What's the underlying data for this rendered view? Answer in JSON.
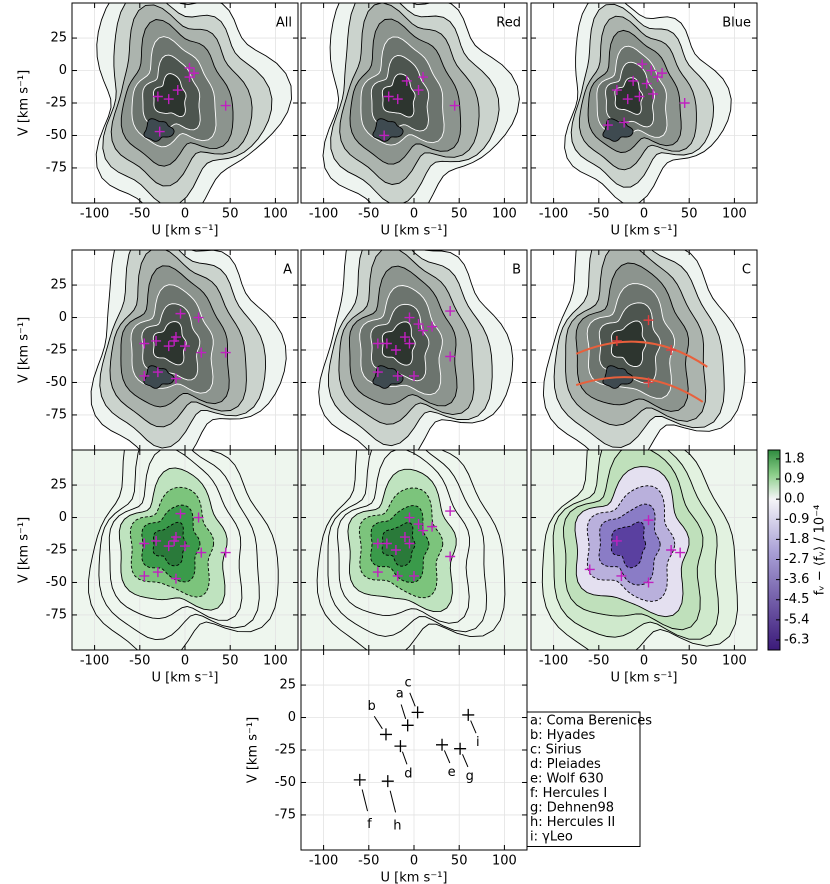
{
  "chart_data": [
    {
      "type": "contour",
      "title": "All",
      "title_color": "#000000",
      "ylabel": "V [km s⁻¹]",
      "xlabel": "U [km s⁻¹]",
      "xlim": [
        -125,
        125
      ],
      "ylim": [
        -102,
        52
      ],
      "xticks": [
        -100,
        -50,
        0,
        50,
        100
      ],
      "yticks": [
        -75,
        -50,
        -25,
        0,
        25
      ],
      "show_xticklabels": true,
      "show_yticklabels": true,
      "grid": true,
      "marker_color": "#c020c0",
      "markers": {
        "x": [
          -30,
          -18,
          -8,
          5,
          5,
          10,
          45,
          -28
        ],
        "y": [
          -20,
          -22,
          -15,
          -5,
          2,
          -2,
          -27,
          -47
        ]
      }
    },
    {
      "type": "contour",
      "title": "Red",
      "title_color": "#d62728",
      "xlabel": "U [km s⁻¹]",
      "xlim": [
        -125,
        125
      ],
      "ylim": [
        -102,
        52
      ],
      "xticks": [
        -100,
        -50,
        0,
        50,
        100
      ],
      "yticks": [
        -75,
        -50,
        -25,
        0,
        25
      ],
      "show_xticklabels": true,
      "show_yticklabels": false,
      "grid": true,
      "marker_color": "#c020c0",
      "markers": {
        "x": [
          -28,
          -18,
          -8,
          5,
          10,
          45,
          -33
        ],
        "y": [
          -20,
          -22,
          -8,
          -15,
          -5,
          -27,
          -50
        ]
      }
    },
    {
      "type": "contour",
      "title": "Blue",
      "title_color": "#1f77b4",
      "xlabel": "U [km s⁻¹]",
      "xlim": [
        -125,
        125
      ],
      "ylim": [
        -102,
        52
      ],
      "xticks": [
        -100,
        -50,
        0,
        50,
        100
      ],
      "yticks": [
        -75,
        -50,
        -25,
        0,
        25
      ],
      "show_xticklabels": true,
      "show_yticklabels": false,
      "grid": true,
      "marker_color": "#c020c0",
      "markers": {
        "x": [
          -30,
          -18,
          -12,
          -5,
          3,
          8,
          15,
          20,
          -2,
          10,
          45,
          -40,
          -22
        ],
        "y": [
          -15,
          -22,
          -8,
          -20,
          -10,
          0,
          -5,
          -2,
          5,
          -18,
          -25,
          -42,
          -40
        ]
      }
    },
    {
      "type": "contour",
      "title": "A",
      "title_color": "#000000",
      "ylabel": "V [km s⁻¹]",
      "xlim": [
        -125,
        125
      ],
      "ylim": [
        -102,
        52
      ],
      "xticks": [
        -100,
        -50,
        0,
        50,
        100
      ],
      "yticks": [
        -75,
        -50,
        -25,
        0,
        25
      ],
      "show_xticklabels": false,
      "show_yticklabels": true,
      "grid": true,
      "marker_color": "#c020c0",
      "markers": {
        "x": [
          -45,
          -32,
          -18,
          -10,
          -5,
          15,
          -12,
          0,
          18,
          45,
          -30,
          -45,
          -10
        ],
        "y": [
          -20,
          -18,
          -22,
          -15,
          3,
          0,
          -18,
          -22,
          -27,
          -27,
          -42,
          -45,
          -47
        ]
      }
    },
    {
      "type": "contour",
      "title": "B",
      "title_color": "#000000",
      "xlim": [
        -125,
        125
      ],
      "ylim": [
        -102,
        52
      ],
      "xticks": [
        -100,
        -50,
        0,
        50,
        100
      ],
      "yticks": [
        -75,
        -50,
        -25,
        0,
        25
      ],
      "show_xticklabels": false,
      "show_yticklabels": false,
      "grid": true,
      "marker_color": "#c020c0",
      "markers": {
        "x": [
          -40,
          -30,
          -20,
          -10,
          -5,
          5,
          10,
          20,
          40,
          -40,
          -18,
          0,
          40,
          -5
        ],
        "y": [
          -20,
          -20,
          -25,
          -15,
          0,
          -5,
          -10,
          -7,
          5,
          -42,
          -45,
          -45,
          -30,
          -20
        ]
      }
    },
    {
      "type": "contour",
      "title": "C",
      "title_color": "#000000",
      "xlim": [
        -125,
        125
      ],
      "ylim": [
        -102,
        52
      ],
      "xticks": [
        -100,
        -50,
        0,
        50,
        100
      ],
      "yticks": [
        -75,
        -50,
        -25,
        0,
        25
      ],
      "show_xticklabels": false,
      "show_yticklabels": false,
      "grid": true,
      "marker_color": "#e04040",
      "markers": {
        "x": [
          -30,
          5,
          30,
          5
        ],
        "y": [
          -18,
          -2,
          -25,
          -50
        ]
      }
    },
    {
      "type": "contour",
      "ylabel": "V [km s⁻¹]",
      "xlabel": "U [km s⁻¹]",
      "xlim": [
        -125,
        125
      ],
      "ylim": [
        -102,
        52
      ],
      "xticks": [
        -100,
        -50,
        0,
        50,
        100
      ],
      "yticks": [
        -75,
        -50,
        -25,
        0,
        25
      ],
      "show_xticklabels": true,
      "show_yticklabels": true,
      "grid": true,
      "marker_color": "#c020c0",
      "markers": {
        "x": [
          -45,
          -32,
          -18,
          -10,
          -5,
          15,
          -12,
          0,
          18,
          45,
          -30,
          -45,
          -10
        ],
        "y": [
          -20,
          -18,
          -22,
          -15,
          3,
          0,
          -18,
          -22,
          -27,
          -27,
          -42,
          -45,
          -47
        ]
      }
    },
    {
      "type": "contour",
      "xlim": [
        -125,
        125
      ],
      "ylim": [
        -102,
        52
      ],
      "xticks": [
        -100,
        -50,
        0,
        50,
        100
      ],
      "yticks": [
        -75,
        -50,
        -25,
        0,
        25
      ],
      "show_xticklabels": false,
      "show_yticklabels": false,
      "grid": true,
      "marker_color": "#c020c0",
      "markers": {
        "x": [
          -40,
          -30,
          -20,
          -10,
          -5,
          5,
          10,
          20,
          40,
          -40,
          -18,
          0,
          40,
          -5
        ],
        "y": [
          -20,
          -20,
          -25,
          -15,
          0,
          -5,
          -10,
          -7,
          5,
          -42,
          -45,
          -45,
          -30,
          -20
        ]
      }
    },
    {
      "type": "contour",
      "xlabel": "U [km s⁻¹]",
      "xlim": [
        -125,
        125
      ],
      "ylim": [
        -102,
        52
      ],
      "xticks": [
        -100,
        -50,
        0,
        50,
        100
      ],
      "yticks": [
        -75,
        -50,
        -25,
        0,
        25
      ],
      "show_xticklabels": true,
      "show_yticklabels": false,
      "grid": true,
      "marker_color": "#c020c0",
      "markers": {
        "x": [
          -30,
          5,
          30,
          -60,
          -25,
          5,
          40
        ],
        "y": [
          -18,
          -2,
          -25,
          -40,
          -45,
          -50,
          -27
        ]
      },
      "colorbar": {
        "label": "fᵥ − ⟨fᵥ⟩ / 10⁻⁴",
        "lim": [
          -6.75,
          2.2
        ],
        "ticks": [
          1.8,
          0.9,
          {
            "value": 0,
            "label": "0.0"
          },
          -0.9,
          -1.8,
          -2.7,
          -3.6,
          -4.5,
          -5.4,
          -6.3
        ]
      }
    },
    {
      "type": "scatter",
      "ylabel": "V [km s⁻¹]",
      "xlabel": "U [km s⁻¹]",
      "xlim": [
        -125,
        125
      ],
      "ylim": [
        -102,
        52
      ],
      "xticks": [
        -100,
        -50,
        0,
        50,
        100
      ],
      "yticks": [
        -75,
        -50,
        -25,
        0,
        25
      ],
      "show_xticklabels": true,
      "show_yticklabels": true,
      "grid": true,
      "marker_color": "#000000",
      "points": {
        "x": [
          -7,
          -31,
          4,
          -15,
          31,
          -60,
          51,
          -29,
          60
        ],
        "y": [
          -6,
          -13,
          4,
          -22,
          -21,
          -48,
          -24,
          -49,
          2
        ],
        "labels": [
          "a",
          "b",
          "c",
          "d",
          "e",
          "f",
          "g",
          "h",
          "i"
        ]
      },
      "legend": [
        "a: Coma Berenices",
        "b: Hyades",
        "c: Sirius",
        "d: Pleiades",
        "e: Wolf 630",
        "f: Hercules I",
        "g: Dehnen98",
        "h: Hercules II",
        "i: γLeo"
      ]
    }
  ]
}
